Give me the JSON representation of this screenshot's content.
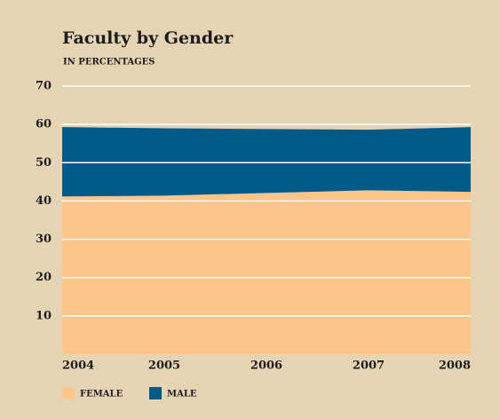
{
  "chart_data": {
    "type": "stacked-area",
    "title": "Faculty by Gender",
    "subtitle": "IN PERCENTAGES",
    "categories": [
      "2004",
      "2005",
      "2006",
      "2007",
      "2008"
    ],
    "series": [
      {
        "name": "FEMALE",
        "color": "#fcc589",
        "values": [
          41.2,
          41.4,
          42.1,
          42.8,
          42.4
        ]
      },
      {
        "name": "MALE",
        "color": "#005a87",
        "values": [
          18.1,
          17.6,
          16.7,
          15.8,
          16.9
        ]
      }
    ],
    "ylim": [
      0,
      70
    ],
    "yticks": [
      10,
      20,
      30,
      40,
      50,
      60,
      70
    ],
    "grid": true
  }
}
